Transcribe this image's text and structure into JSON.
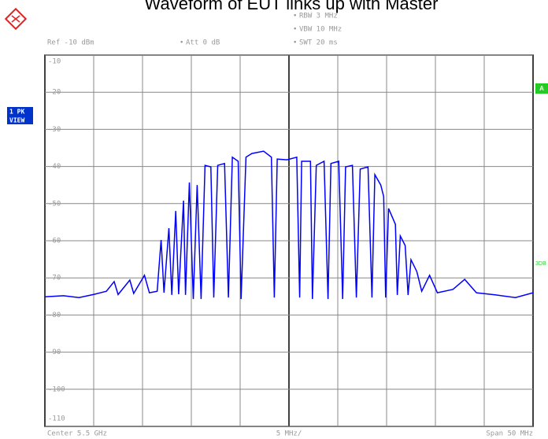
{
  "chart_data": {
    "type": "line",
    "title": "Waveform of EUT links up with Master",
    "instrument": {
      "ref": "Ref -10 dBm",
      "att": "Att 0 dB",
      "rbw": "RBW 3 MHz",
      "vbw": "VBW 10 MHz",
      "swt": "SWT 20 ms",
      "trace_label": "1 PK",
      "trace_mode": "VIEW",
      "marker_a": "A",
      "marker_3db": "3DB",
      "center": "Center 5.5 GHz",
      "div": "5 MHz/",
      "span": "Span 50 MHz"
    },
    "xlim": [
      5.475,
      5.525
    ],
    "ylim": [
      -110,
      -10
    ],
    "yticks": [
      -10,
      -20,
      -30,
      -40,
      -50,
      -60,
      -70,
      -80,
      -90,
      -100,
      -110
    ],
    "grid": true,
    "series": [
      {
        "name": "Trace 1",
        "color": "#0000ff",
        "x": [
          5.475,
          5.4769,
          5.4785,
          5.4801,
          5.4813,
          5.4821,
          5.4825,
          5.4837,
          5.4841,
          5.4852,
          5.4857,
          5.4865,
          5.4869,
          5.4872,
          5.4877,
          5.488,
          5.4884,
          5.4887,
          5.4892,
          5.4894,
          5.4898,
          5.4902,
          5.4906,
          5.491,
          5.4914,
          5.492,
          5.4923,
          5.4927,
          5.4934,
          5.4938,
          5.4942,
          5.4948,
          5.4951,
          5.4956,
          5.4962,
          5.4974,
          5.4982,
          5.4985,
          5.4988,
          5.4998,
          5.5008,
          5.5011,
          5.5013,
          5.5022,
          5.5024,
          5.5028,
          5.5036,
          5.504,
          5.5043,
          5.5051,
          5.5055,
          5.5058,
          5.5065,
          5.5069,
          5.5073,
          5.5081,
          5.5085,
          5.5088,
          5.5094,
          5.5097,
          5.5099,
          5.5102,
          5.5109,
          5.5111,
          5.5114,
          5.5119,
          5.5122,
          5.5125,
          5.5131,
          5.5136,
          5.5144,
          5.5152,
          5.5168,
          5.518,
          5.5192,
          5.5212,
          5.5232,
          5.525
        ],
        "values": [
          -75.1,
          -74.8,
          -75.3,
          -74.4,
          -73.6,
          -71.0,
          -74.5,
          -70.6,
          -74.2,
          -69.3,
          -74.0,
          -73.6,
          -59.8,
          -74.0,
          -56.6,
          -74.6,
          -52.0,
          -74.4,
          -49.2,
          -74.6,
          -44.3,
          -75.7,
          -45.0,
          -75.7,
          -39.7,
          -40.1,
          -75.3,
          -39.7,
          -39.2,
          -75.3,
          -37.5,
          -38.6,
          -75.7,
          -37.5,
          -36.5,
          -35.9,
          -37.5,
          -75.3,
          -38.0,
          -38.2,
          -37.5,
          -75.3,
          -38.6,
          -38.6,
          -75.7,
          -39.7,
          -38.6,
          -75.7,
          -39.2,
          -38.6,
          -75.7,
          -40.1,
          -39.7,
          -75.3,
          -40.7,
          -40.1,
          -75.3,
          -42.2,
          -45.0,
          -48.1,
          -75.3,
          -51.3,
          -55.6,
          -74.6,
          -58.7,
          -61.3,
          -74.6,
          -65.1,
          -68.3,
          -73.6,
          -69.3,
          -74.0,
          -73.1,
          -70.4,
          -74.0,
          -74.6,
          -75.3,
          -74.0
        ]
      }
    ]
  }
}
